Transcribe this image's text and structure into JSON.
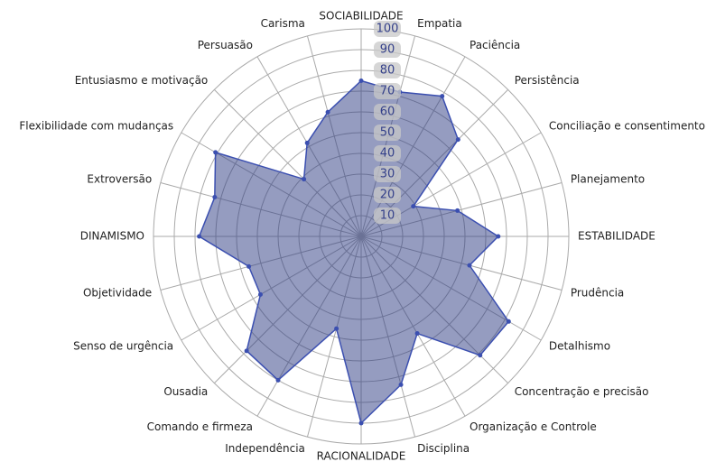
{
  "chart_data": {
    "type": "radar",
    "categories": [
      "SOCIABILIDADE",
      "Empatia",
      "Paciência",
      "Persistência",
      "Conciliação e consentimento",
      "Planejamento",
      "ESTABILIDADE",
      "Prudência",
      "Detalhismo",
      "Concentração e precisão",
      "Organização e Controle",
      "Disciplina",
      "RACIONALIDADE",
      "Independência",
      "Comando e firmeza",
      "Ousadia",
      "Senso de urgência",
      "Objetividade",
      "DINAMISMO",
      "Extroversão",
      "Flexibilidade com mudanças",
      "Entusiasmo e motivação",
      "Persuasão",
      "Carisma"
    ],
    "values": [
      75,
      72,
      78,
      66,
      29,
      48,
      66,
      54,
      82,
      81,
      54,
      74,
      90,
      46,
      80,
      78,
      56,
      56,
      78,
      73,
      81,
      39,
      52,
      62
    ],
    "color": "#3b4fb0",
    "rlim": [
      0,
      100
    ],
    "rticks": [
      10,
      20,
      30,
      40,
      50,
      60,
      70,
      80,
      90,
      100
    ],
    "grid": true
  }
}
